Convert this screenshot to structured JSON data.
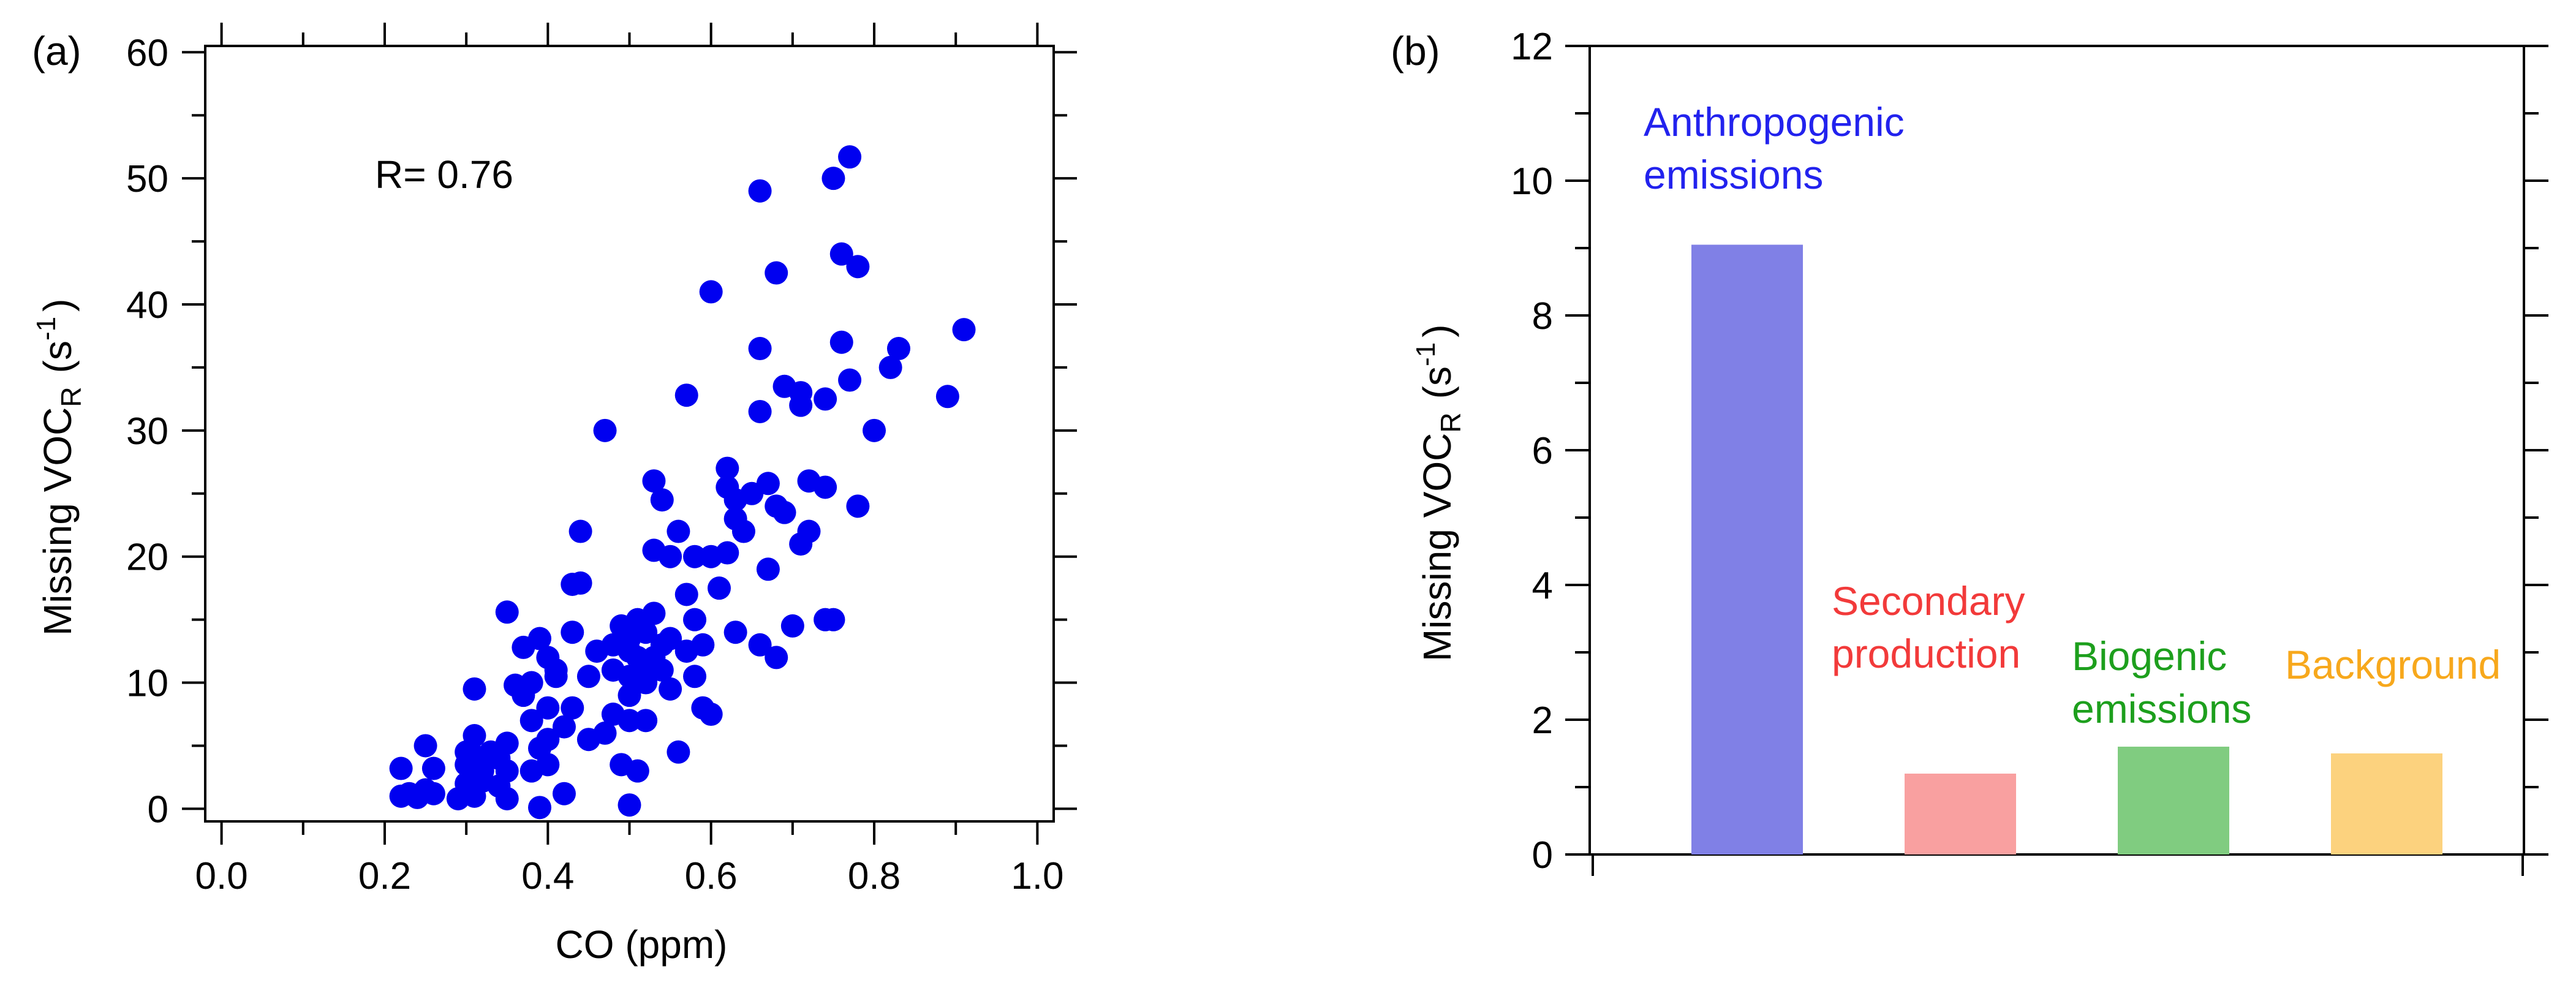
{
  "chart_data": [
    {
      "type": "scatter",
      "panel_label": "(a)",
      "xlabel": "CO  (ppm)",
      "ylabel_main": "Missing VOC",
      "ylabel_sub": "R",
      "ylabel_unit_open": "(s",
      "ylabel_unit_sup": "-1",
      "ylabel_unit_close": ")",
      "xlim": [
        -0.02,
        1.02
      ],
      "ylim": [
        -1,
        60.5
      ],
      "xticks": [
        0.0,
        0.2,
        0.4,
        0.6,
        0.8,
        1.0
      ],
      "xtick_labels": [
        "0.0",
        "0.2",
        "0.4",
        "0.6",
        "0.8",
        "1.0"
      ],
      "yticks": [
        0,
        10,
        20,
        30,
        40,
        50,
        60
      ],
      "ytick_labels": [
        "0",
        "10",
        "20",
        "30",
        "40",
        "50",
        "60"
      ],
      "annotation": "R= 0.76",
      "grid": false,
      "marker_color": "#0000f0",
      "points": [
        [
          0.22,
          3.2
        ],
        [
          0.22,
          1.0
        ],
        [
          0.23,
          1.2
        ],
        [
          0.24,
          0.9
        ],
        [
          0.25,
          5.0
        ],
        [
          0.25,
          1.5
        ],
        [
          0.26,
          3.2
        ],
        [
          0.26,
          1.2
        ],
        [
          0.29,
          0.8
        ],
        [
          0.3,
          4.5
        ],
        [
          0.3,
          3.5
        ],
        [
          0.3,
          2.0
        ],
        [
          0.31,
          9.5
        ],
        [
          0.31,
          5.8
        ],
        [
          0.31,
          4.2
        ],
        [
          0.31,
          1.0
        ],
        [
          0.32,
          3.0
        ],
        [
          0.32,
          2.2
        ],
        [
          0.33,
          4.5
        ],
        [
          0.34,
          4.0
        ],
        [
          0.34,
          1.8
        ],
        [
          0.35,
          15.6
        ],
        [
          0.35,
          5.2
        ],
        [
          0.35,
          3.0
        ],
        [
          0.35,
          0.8
        ],
        [
          0.36,
          9.8
        ],
        [
          0.37,
          12.8
        ],
        [
          0.37,
          9.0
        ],
        [
          0.38,
          10.0
        ],
        [
          0.38,
          7.0
        ],
        [
          0.38,
          3.0
        ],
        [
          0.39,
          13.5
        ],
        [
          0.39,
          4.8
        ],
        [
          0.39,
          0.1
        ],
        [
          0.4,
          12.0
        ],
        [
          0.4,
          8.0
        ],
        [
          0.4,
          5.5
        ],
        [
          0.4,
          3.5
        ],
        [
          0.41,
          10.5
        ],
        [
          0.41,
          11.0
        ],
        [
          0.42,
          6.5
        ],
        [
          0.42,
          1.2
        ],
        [
          0.43,
          17.8
        ],
        [
          0.43,
          14.0
        ],
        [
          0.43,
          8.0
        ],
        [
          0.44,
          22.0
        ],
        [
          0.44,
          17.9
        ],
        [
          0.45,
          10.5
        ],
        [
          0.45,
          5.5
        ],
        [
          0.46,
          12.5
        ],
        [
          0.47,
          30.0
        ],
        [
          0.47,
          6.0
        ],
        [
          0.48,
          13.0
        ],
        [
          0.48,
          11.0
        ],
        [
          0.48,
          7.5
        ],
        [
          0.49,
          14.5
        ],
        [
          0.49,
          3.5
        ],
        [
          0.5,
          13.5
        ],
        [
          0.5,
          12.5
        ],
        [
          0.5,
          10.5
        ],
        [
          0.5,
          9.0
        ],
        [
          0.5,
          7.0
        ],
        [
          0.5,
          0.3
        ],
        [
          0.51,
          15.0
        ],
        [
          0.51,
          12.0
        ],
        [
          0.51,
          3.0
        ],
        [
          0.52,
          14.0
        ],
        [
          0.52,
          11.5
        ],
        [
          0.52,
          10.0
        ],
        [
          0.52,
          7.0
        ],
        [
          0.53,
          26.0
        ],
        [
          0.53,
          20.5
        ],
        [
          0.53,
          15.5
        ],
        [
          0.53,
          12.0
        ],
        [
          0.54,
          24.5
        ],
        [
          0.54,
          13.0
        ],
        [
          0.54,
          11.0
        ],
        [
          0.55,
          20.0
        ],
        [
          0.55,
          13.5
        ],
        [
          0.55,
          9.5
        ],
        [
          0.56,
          22.0
        ],
        [
          0.56,
          4.5
        ],
        [
          0.57,
          32.8
        ],
        [
          0.57,
          17.0
        ],
        [
          0.57,
          12.5
        ],
        [
          0.58,
          20.0
        ],
        [
          0.58,
          15.0
        ],
        [
          0.58,
          10.5
        ],
        [
          0.59,
          13.0
        ],
        [
          0.59,
          8.0
        ],
        [
          0.6,
          41.0
        ],
        [
          0.6,
          20.0
        ],
        [
          0.6,
          7.5
        ],
        [
          0.61,
          17.5
        ],
        [
          0.62,
          27.0
        ],
        [
          0.62,
          25.5
        ],
        [
          0.62,
          20.3
        ],
        [
          0.63,
          24.5
        ],
        [
          0.63,
          23.0
        ],
        [
          0.63,
          14.0
        ],
        [
          0.64,
          22.0
        ],
        [
          0.65,
          25.0
        ],
        [
          0.66,
          49.0
        ],
        [
          0.66,
          36.5
        ],
        [
          0.66,
          31.5
        ],
        [
          0.66,
          13.0
        ],
        [
          0.67,
          25.8
        ],
        [
          0.67,
          19.0
        ],
        [
          0.68,
          42.5
        ],
        [
          0.68,
          24.0
        ],
        [
          0.68,
          12.0
        ],
        [
          0.69,
          33.5
        ],
        [
          0.69,
          23.5
        ],
        [
          0.7,
          14.5
        ],
        [
          0.71,
          33.0
        ],
        [
          0.71,
          32.0
        ],
        [
          0.71,
          21.0
        ],
        [
          0.72,
          26.0
        ],
        [
          0.72,
          22.0
        ],
        [
          0.74,
          32.5
        ],
        [
          0.74,
          25.5
        ],
        [
          0.74,
          15.0
        ],
        [
          0.75,
          50.0
        ],
        [
          0.75,
          15.0
        ],
        [
          0.76,
          44.0
        ],
        [
          0.76,
          37.0
        ],
        [
          0.77,
          51.7
        ],
        [
          0.77,
          34.0
        ],
        [
          0.78,
          43.0
        ],
        [
          0.78,
          24.0
        ],
        [
          0.8,
          30.0
        ],
        [
          0.82,
          35.0
        ],
        [
          0.83,
          36.5
        ],
        [
          0.89,
          32.7
        ],
        [
          0.91,
          38.0
        ]
      ]
    },
    {
      "type": "bar",
      "panel_label": "(b)",
      "ylabel_main": "Missing VOC",
      "ylabel_sub": "R",
      "ylabel_unit_open": "(s",
      "ylabel_unit_sup": "-1",
      "ylabel_unit_close": ")",
      "ylim": [
        0,
        12
      ],
      "yticks": [
        0,
        2,
        4,
        6,
        8,
        10,
        12
      ],
      "ytick_labels": [
        "0",
        "2",
        "4",
        "6",
        "8",
        "10",
        "12"
      ],
      "grid": false,
      "categories": [
        {
          "lines": [
            "Anthropogenic",
            "emissions"
          ],
          "value": 9.05,
          "bar_color": "#8080e6",
          "text_color": "#2222ee"
        },
        {
          "lines": [
            "Secondary",
            "production"
          ],
          "value": 1.2,
          "bar_color": "#f9a0a0",
          "text_color": "#f23a3a"
        },
        {
          "lines": [
            "Biogenic",
            "emissions"
          ],
          "value": 1.6,
          "bar_color": "#80cc80",
          "text_color": "#1d9f1d"
        },
        {
          "lines": [
            "Background"
          ],
          "value": 1.5,
          "bar_color": "#fcd27e",
          "text_color": "#f7a81c"
        }
      ]
    }
  ]
}
